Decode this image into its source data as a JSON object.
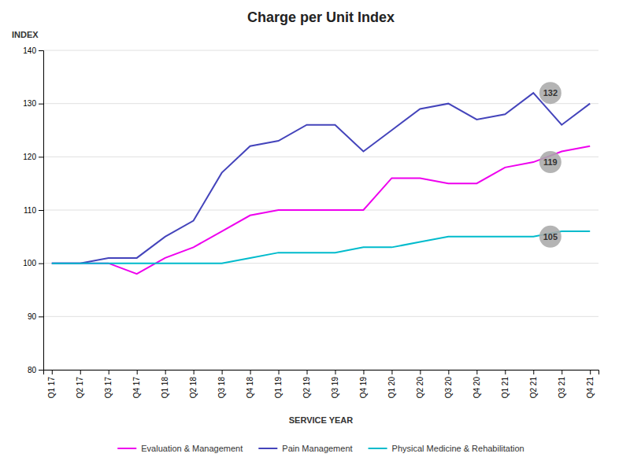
{
  "chart_data": {
    "type": "line",
    "title": "Charge per Unit Index",
    "x_label": "SERVICE YEAR",
    "y_label": "INDEX",
    "categories": [
      "Q1 17",
      "Q2 17",
      "Q3 17",
      "Q4 17",
      "Q1 18",
      "Q2 18",
      "Q3 18",
      "Q4 18",
      "Q1 19",
      "Q2 19",
      "Q3 19",
      "Q4 19",
      "Q1 20",
      "Q2 20",
      "Q3 20",
      "Q4 20",
      "Q1 21",
      "Q2 21",
      "Q3 21",
      "Q4 21"
    ],
    "series": [
      {
        "name": "Evaluation & Management",
        "color": "#EE00EE",
        "values": [
          100,
          100,
          100,
          98,
          101,
          103,
          106,
          109,
          110,
          110,
          110,
          110,
          116,
          116,
          115,
          115,
          118,
          119,
          121,
          122
        ]
      },
      {
        "name": "Pain Management",
        "color": "#4444BB",
        "values": [
          100,
          100,
          101,
          101,
          105,
          108,
          117,
          122,
          123,
          126,
          126,
          121,
          125,
          129,
          130,
          127,
          128,
          132,
          126,
          130
        ]
      },
      {
        "name": "Physical Medicine & Rehabilitation",
        "color": "#00BBCC",
        "values": [
          100,
          100,
          100,
          100,
          100,
          100,
          100,
          101,
          102,
          102,
          102,
          103,
          103,
          104,
          105,
          105,
          105,
          105,
          106,
          106
        ]
      }
    ],
    "annotations": [
      {
        "category": "Q2 21",
        "series": "Pain Management",
        "value": 132,
        "color": "#AAAAAA"
      },
      {
        "category": "Q2 21",
        "series": "Evaluation & Management",
        "value": 119,
        "color": "#AAAAAA"
      },
      {
        "category": "Q2 21",
        "series": "Physical Medicine & Rehabilitation",
        "value": 105,
        "color": "#AAAAAA"
      }
    ],
    "ylim": [
      80,
      140
    ],
    "yticks": [
      80,
      90,
      100,
      110,
      120,
      130,
      140
    ],
    "grid": true,
    "legend": "bottom"
  }
}
